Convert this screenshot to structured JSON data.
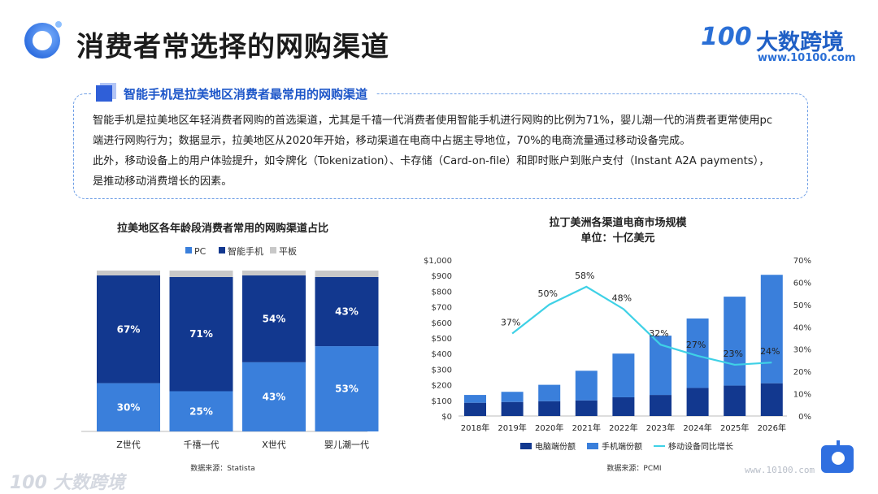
{
  "header": {
    "title": "消费者常选择的网购渠道",
    "brand_mark": "100",
    "brand_name": "大数跨境",
    "brand_url": "www.10100.com"
  },
  "info": {
    "heading": "智能手机是拉美地区消费者最常用的网购渠道",
    "line1": "智能手机是拉美地区年轻消费者网购的首选渠道，尤其是千禧一代消费者使用智能手机进行网购的比例为71%，婴儿潮一代的消费者更常使用pc",
    "line2": "端进行网购行为；数据显示，拉美地区从2020年开始，移动渠道在电商中占据主导地位，70%的电商流量通过移动设备完成。",
    "line3": "此外，移动设备上的用户体验提升，如令牌化（Tokenization）、卡存储（Card-on-file）和即时账户到账户支付（Instant A2A payments），",
    "line4": "是推动移动消费增长的因素。"
  },
  "chart_data": [
    {
      "type": "bar",
      "stacked": true,
      "title": "拉美地区各年龄段消费者常用的网购渠道占比",
      "categories": [
        "Z世代",
        "千禧一代",
        "X世代",
        "婴儿潮一代"
      ],
      "series": [
        {
          "name": "PC",
          "values": [
            30,
            25,
            43,
            53
          ],
          "labels": [
            "30%",
            "25%",
            "43%",
            "53%"
          ],
          "color": "#3a7fdb"
        },
        {
          "name": "智能手机",
          "values": [
            67,
            71,
            54,
            43
          ],
          "labels": [
            "67%",
            "71%",
            "54%",
            "43%"
          ],
          "color": "#12388f"
        },
        {
          "name": "平板",
          "values": [
            3,
            4,
            3,
            4
          ],
          "color": "#c8c8c8"
        }
      ],
      "ylim": [
        0,
        100
      ],
      "legend": "top",
      "source": "数据来源：Statista"
    },
    {
      "type": "bar+line",
      "stacked": true,
      "title": "拉丁美洲各渠道电商市场规模",
      "subtitle": "单位：十亿美元",
      "categories": [
        "2018年",
        "2019年",
        "2020年",
        "2021年",
        "2022年",
        "2023年",
        "2024年",
        "2025年",
        "2026年"
      ],
      "series": [
        {
          "name": "电脑端份额",
          "values": [
            85,
            90,
            95,
            100,
            120,
            135,
            180,
            195,
            210
          ],
          "color": "#12388f"
        },
        {
          "name": "手机端份额",
          "values": [
            50,
            65,
            105,
            190,
            280,
            380,
            445,
            570,
            695
          ],
          "color": "#3a7fdb"
        },
        {
          "name": "移动设备同比增长",
          "values": [
            37,
            50,
            58,
            48,
            32,
            27,
            23,
            24
          ],
          "labels": [
            "37%",
            "50%",
            "58%",
            "48%",
            "32%",
            "27%",
            "23%",
            "24%"
          ],
          "x": [
            "2019年",
            "2020年",
            "2021年",
            "2022年",
            "2023年",
            "2024年",
            "2025年",
            "2026年"
          ],
          "axis": "right",
          "color": "#3fd1e6"
        }
      ],
      "y_left": {
        "ylim": [
          0,
          1000
        ],
        "ticks": [
          "$0",
          "$100",
          "$200",
          "$300",
          "$400",
          "$500",
          "$600",
          "$700",
          "$800",
          "$900",
          "$1,000"
        ]
      },
      "y_right": {
        "ylim": [
          0,
          70
        ],
        "ticks": [
          "0%",
          "10%",
          "20%",
          "30%",
          "40%",
          "50%",
          "60%",
          "70%"
        ]
      },
      "legend": "bottom",
      "source": "数据来源：PCMI"
    }
  ],
  "footer": {
    "watermark": "100 大数跨境",
    "url": "www.10100.com"
  }
}
